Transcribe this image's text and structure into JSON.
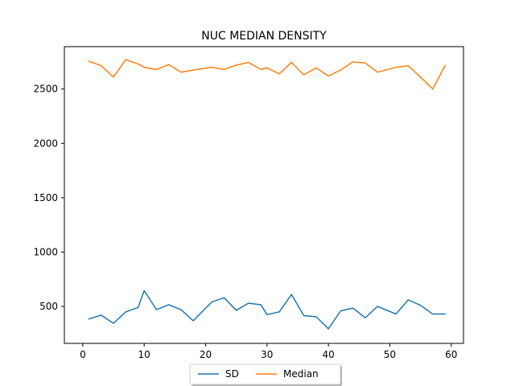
{
  "chart_data": {
    "type": "line",
    "title": "NUC MEDIAN DENSITY",
    "xlabel": "",
    "ylabel": "",
    "xlim": [
      -3,
      62
    ],
    "ylim": [
      160,
      2890
    ],
    "xticks": [
      0,
      10,
      20,
      30,
      40,
      50,
      60
    ],
    "yticks": [
      500,
      1000,
      1500,
      2000,
      2500
    ],
    "grid": false,
    "legend": {
      "placement": "bottom-center-outside",
      "ncol": 2
    },
    "series": [
      {
        "name": "SD",
        "color": "#1f77b4",
        "x": [
          1,
          3,
          5,
          7,
          9,
          10,
          12,
          14,
          16,
          18,
          21,
          23,
          25,
          27,
          29,
          30,
          32,
          34,
          36,
          38,
          40,
          42,
          44,
          46,
          48,
          51,
          53,
          55,
          57,
          59
        ],
        "values": [
          385,
          420,
          345,
          450,
          490,
          645,
          470,
          515,
          470,
          368,
          540,
          580,
          465,
          530,
          515,
          425,
          450,
          610,
          415,
          405,
          295,
          460,
          485,
          395,
          500,
          430,
          560,
          510,
          430,
          430
        ]
      },
      {
        "name": "Median",
        "color": "#ff7f0e",
        "x": [
          1,
          3,
          5,
          7,
          9,
          10,
          12,
          14,
          16,
          18,
          21,
          23,
          25,
          27,
          29,
          30,
          32,
          34,
          36,
          38,
          40,
          42,
          44,
          46,
          48,
          51,
          53,
          55,
          57,
          59
        ],
        "values": [
          2755,
          2715,
          2610,
          2770,
          2730,
          2700,
          2680,
          2725,
          2655,
          2675,
          2700,
          2680,
          2720,
          2745,
          2680,
          2695,
          2640,
          2745,
          2630,
          2695,
          2620,
          2675,
          2750,
          2740,
          2655,
          2700,
          2715,
          2610,
          2500,
          2715
        ]
      }
    ]
  }
}
